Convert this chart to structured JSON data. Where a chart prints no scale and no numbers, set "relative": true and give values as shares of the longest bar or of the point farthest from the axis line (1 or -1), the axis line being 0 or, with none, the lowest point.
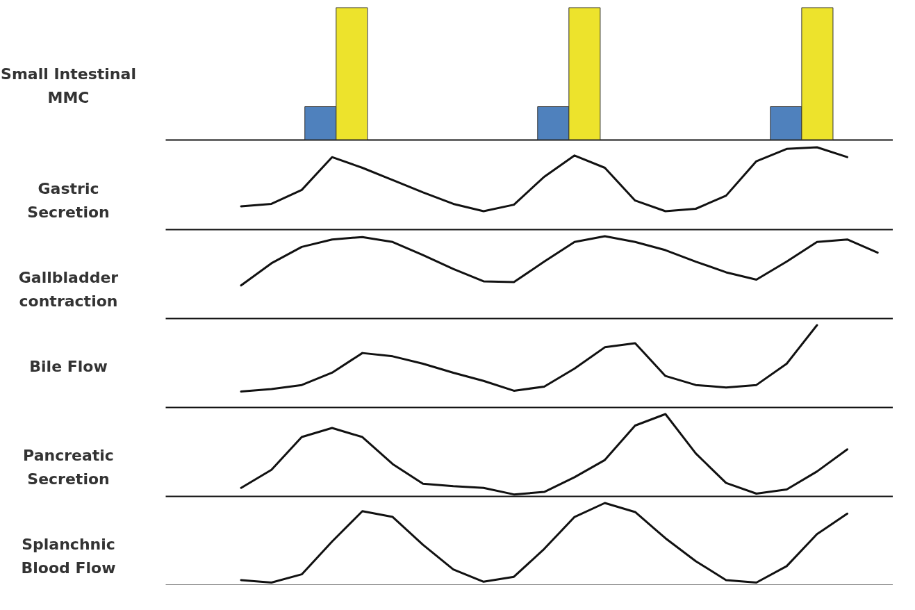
{
  "chart_data": [
    {
      "type": "bar",
      "ylabel": "Small Intestinal\nMMC",
      "relative": true,
      "categories": [
        null,
        null,
        null
      ],
      "series": [
        {
          "color": "#4f81bd",
          "values": [
            0.25,
            0.25,
            0.25
          ]
        },
        {
          "color": "#ede32c",
          "values": [
            1,
            1,
            1
          ]
        }
      ]
    },
    {
      "type": "line",
      "ylabel": "Gastric\nSecretion",
      "relative": true,
      "color": "#111111",
      "categories": [
        null,
        null,
        null,
        null,
        null,
        null,
        null,
        null,
        null,
        null,
        null,
        null,
        null,
        null,
        null,
        null,
        null,
        null,
        null,
        null,
        null,
        null,
        null,
        null
      ],
      "values": [
        null,
        null,
        0.28,
        0.31,
        0.48,
        0.88,
        0.75,
        0.6,
        0.45,
        0.31,
        0.22,
        0.3,
        0.64,
        0.9,
        0.75,
        0.35,
        0.22,
        0.25,
        0.41,
        0.83,
        0.98,
        1,
        0.88,
        null
      ]
    },
    {
      "type": "line",
      "ylabel": "Gallbladder\ncontraction",
      "relative": true,
      "color": "#111111",
      "categories": [
        null,
        null,
        null,
        null,
        null,
        null,
        null,
        null,
        null,
        null,
        null,
        null,
        null,
        null,
        null,
        null,
        null,
        null,
        null,
        null,
        null,
        null,
        null,
        null
      ],
      "values": [
        null,
        null,
        0.4,
        0.67,
        0.87,
        0.96,
        0.99,
        0.93,
        0.77,
        0.6,
        0.45,
        0.44,
        0.69,
        0.93,
        1,
        0.93,
        0.83,
        0.69,
        0.56,
        0.47,
        0.69,
        0.93,
        0.96,
        0.8
      ]
    },
    {
      "type": "line",
      "ylabel": "Bile Flow",
      "relative": true,
      "color": "#111111",
      "categories": [
        null,
        null,
        null,
        null,
        null,
        null,
        null,
        null,
        null,
        null,
        null,
        null,
        null,
        null,
        null,
        null,
        null,
        null,
        null,
        null,
        null,
        null,
        null,
        null
      ],
      "values": [
        null,
        null,
        0.19,
        0.22,
        0.27,
        0.42,
        0.66,
        0.62,
        0.53,
        0.42,
        0.32,
        0.2,
        0.25,
        0.47,
        0.73,
        0.78,
        0.38,
        0.27,
        0.24,
        0.27,
        0.53,
        1,
        null,
        null
      ]
    },
    {
      "type": "line",
      "ylabel": "Pancreatic\nSecretion",
      "relative": true,
      "color": "#111111",
      "categories": [
        null,
        null,
        null,
        null,
        null,
        null,
        null,
        null,
        null,
        null,
        null,
        null,
        null,
        null,
        null,
        null,
        null,
        null,
        null,
        null,
        null,
        null,
        null,
        null
      ],
      "values": [
        null,
        null,
        0.1,
        0.32,
        0.72,
        0.83,
        0.72,
        0.39,
        0.15,
        0.12,
        0.1,
        0.02,
        0.05,
        0.23,
        0.44,
        0.86,
        1,
        0.52,
        0.16,
        0.03,
        0.08,
        0.3,
        0.57,
        null
      ]
    },
    {
      "type": "line",
      "ylabel": "Splanchnic\nBlood Flow",
      "relative": true,
      "color": "#111111",
      "categories": [
        null,
        null,
        null,
        null,
        null,
        null,
        null,
        null,
        null,
        null,
        null,
        null,
        null,
        null,
        null,
        null,
        null,
        null,
        null,
        null,
        null,
        null,
        null,
        null
      ],
      "values": [
        null,
        null,
        0.06,
        0.03,
        0.13,
        0.53,
        0.9,
        0.83,
        0.49,
        0.19,
        0.04,
        0.1,
        0.44,
        0.83,
        1,
        0.89,
        0.57,
        0.29,
        0.06,
        0.03,
        0.23,
        0.62,
        0.87,
        null
      ]
    }
  ]
}
